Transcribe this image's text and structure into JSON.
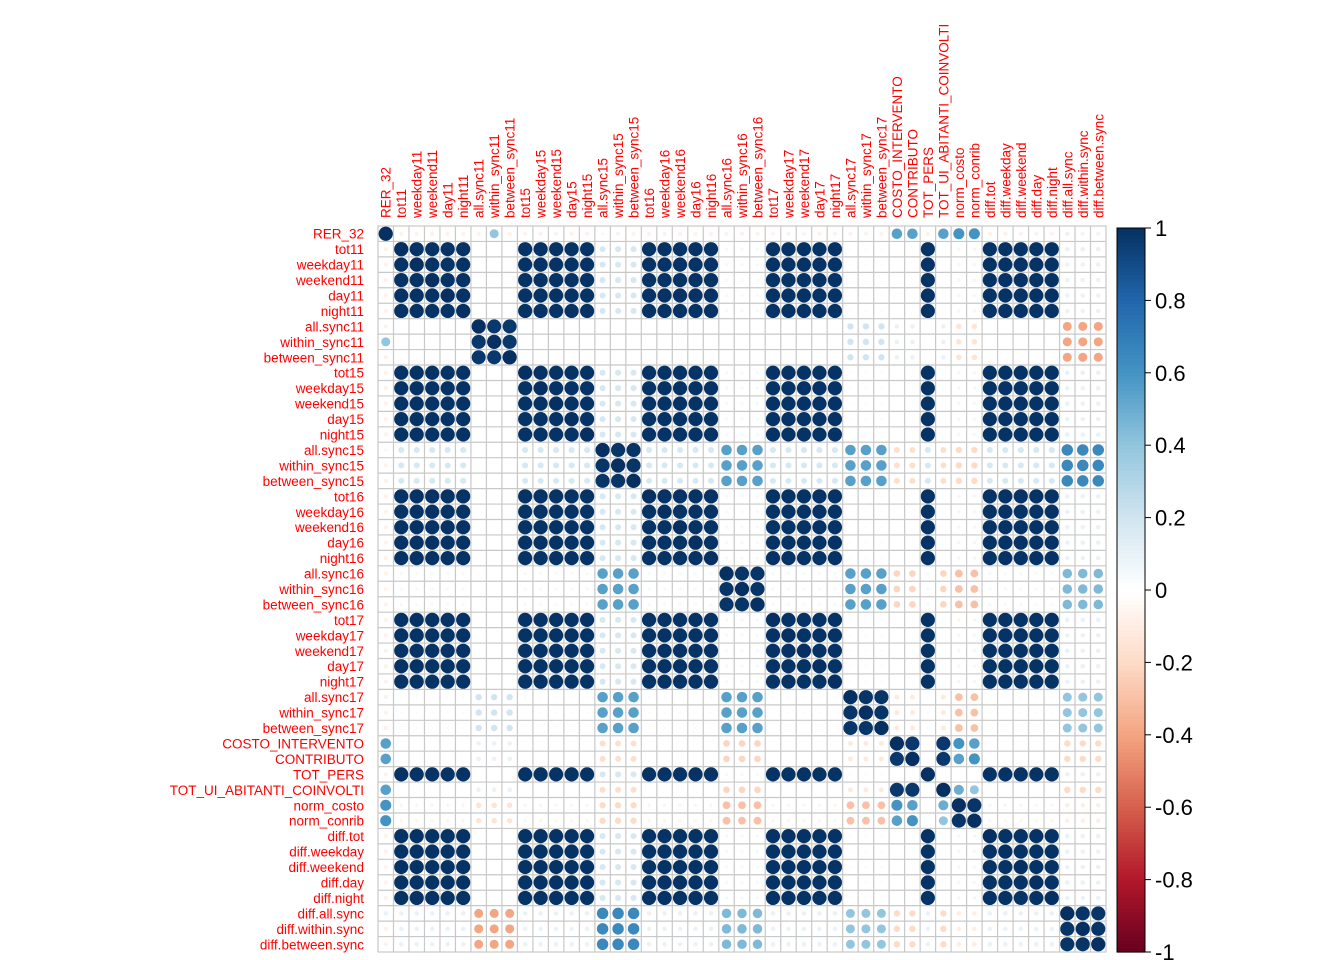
{
  "chart_data": {
    "type": "heatmap",
    "title": "",
    "xlabel": "",
    "ylabel": "",
    "variables": [
      "RER_32",
      "tot11",
      "weekday11",
      "weekend11",
      "day11",
      "night11",
      "all.sync11",
      "within_sync11",
      "between_sync11",
      "tot15",
      "weekday15",
      "weekend15",
      "day15",
      "night15",
      "all.sync15",
      "within_sync15",
      "between_sync15",
      "tot16",
      "weekday16",
      "weekend16",
      "day16",
      "night16",
      "all.sync16",
      "within_sync16",
      "between_sync16",
      "tot17",
      "weekday17",
      "weekend17",
      "day17",
      "night17",
      "all.sync17",
      "within_sync17",
      "between_sync17",
      "COSTO_INTERVENTO",
      "CONTRIBUTO",
      "TOT_PERS",
      "TOT_UI_ABITANTI_COINVOLTI",
      "norm_costo",
      "norm_conrib",
      "diff.tot",
      "diff.weekday",
      "diff.weekend",
      "diff.day",
      "diff.night",
      "diff.all.sync",
      "diff.within.sync",
      "diff.between.sync"
    ],
    "column_labels": [
      "RER_32",
      "tot11",
      "weekday11",
      "weekend11",
      "day11",
      "night11",
      "all.sync11",
      "within_sync11",
      "between_sync11",
      "tot15",
      "weekday15",
      "weekend15",
      "day15",
      "night15",
      "all.sync15",
      "within_sync15",
      "between_sync15",
      "tot16",
      "weekday16",
      "weekend16",
      "day16",
      "night16",
      "all.sync16",
      "within_sync16",
      "between_sync16",
      "tot17",
      "weekday17",
      "weekend17",
      "day17",
      "night17",
      "all.sync17",
      "within_sync17",
      "between_sync17",
      "COSTO_INTERVENTO",
      "CONTRIBUTO",
      "TOT_PERS",
      "TOT_UI_ABITANTI_COINVOLTI",
      "norm_costo",
      "norm_conrib",
      "diff.tot",
      "diff.weekday",
      "diff.weekend",
      "diff.day",
      "diff.night",
      "diff.all.sync",
      "diff.within.sync",
      "diff.between.sync"
    ],
    "groups": {
      "volume": [
        "tot11",
        "weekday11",
        "weekend11",
        "day11",
        "night11",
        "tot15",
        "weekday15",
        "weekend15",
        "day15",
        "night15",
        "tot16",
        "weekday16",
        "weekend16",
        "day16",
        "night16",
        "tot17",
        "weekday17",
        "weekend17",
        "day17",
        "night17",
        "TOT_PERS",
        "diff.tot",
        "diff.weekday",
        "diff.weekend",
        "diff.day",
        "diff.night"
      ],
      "sync11": [
        "all.sync11",
        "within_sync11",
        "between_sync11"
      ],
      "sync15": [
        "all.sync15",
        "within_sync15",
        "between_sync15"
      ],
      "sync16": [
        "all.sync16",
        "within_sync16",
        "between_sync16"
      ],
      "sync17": [
        "all.sync17",
        "within_sync17",
        "between_sync17"
      ],
      "cost": [
        "COSTO_INTERVENTO",
        "CONTRIBUTO",
        "TOT_UI_ABITANTI_COINVOLTI"
      ],
      "norm": [
        "norm_costo",
        "norm_conrib"
      ],
      "diffsync": [
        "diff.all.sync",
        "diff.within.sync",
        "diff.between.sync"
      ]
    },
    "group_correlations": {
      "volume~volume": 0.99,
      "sync11~sync11": 0.97,
      "sync15~sync15": 0.98,
      "sync16~sync16": 0.98,
      "sync17~sync17": 0.98,
      "cost~cost": 0.97,
      "norm~norm": 0.98,
      "diffsync~diffsync": 0.98,
      "sync15~sync16": 0.55,
      "sync15~sync17": 0.55,
      "sync16~sync17": 0.55,
      "sync15~diffsync": 0.65,
      "sync16~diffsync": 0.45,
      "sync17~diffsync": 0.4,
      "sync11~diffsync": -0.4,
      "cost~norm": 0.55,
      "sync15~volume": 0.18,
      "sync16~volume": 0.05,
      "sync17~volume": 0.03,
      "sync11~volume": 0.0,
      "norm~volume": -0.06,
      "cost~volume": 0.0,
      "diffsync~volume": 0.1,
      "cost~sync15": -0.18,
      "cost~sync16": -0.22,
      "cost~sync17": -0.12,
      "norm~sync15": -0.2,
      "norm~sync16": -0.3,
      "norm~sync17": -0.3,
      "cost~diffsync": -0.2,
      "norm~diffsync": -0.1,
      "sync11~sync17": 0.2,
      "sync11~cost": 0.1,
      "sync11~norm": -0.15
    },
    "overrides": [
      {
        "row": "RER_32",
        "col": "RER_32",
        "value": 1.0
      },
      {
        "row": "RER_32",
        "col": "within_sync11",
        "value": 0.4
      },
      {
        "row": "RER_32",
        "col": "COSTO_INTERVENTO",
        "value": 0.55
      },
      {
        "row": "RER_32",
        "col": "CONTRIBUTO",
        "value": 0.55
      },
      {
        "row": "RER_32",
        "col": "TOT_UI_ABITANTI_COINVOLTI",
        "value": 0.55
      },
      {
        "row": "RER_32",
        "col": "norm_costo",
        "value": 0.6
      },
      {
        "row": "RER_32",
        "col": "norm_conrib",
        "value": 0.6
      },
      {
        "row": "RER_32",
        "col": "diff.all.sync",
        "value": 0.1
      },
      {
        "row": "RER_32",
        "col": "all.sync15",
        "value": 0.05
      },
      {
        "row": "TOT_PERS",
        "col": "TOT_PERS",
        "value": 1.0
      },
      {
        "row": "TOT_PERS",
        "col": "COSTO_INTERVENTO",
        "value": 0.0
      },
      {
        "row": "TOT_PERS",
        "col": "CONTRIBUTO",
        "value": 0.0
      },
      {
        "row": "TOT_PERS",
        "col": "TOT_UI_ABITANTI_COINVOLTI",
        "value": 0.0
      },
      {
        "row": "TOT_PERS",
        "col": "norm_costo",
        "value": 0.0
      },
      {
        "row": "TOT_PERS",
        "col": "norm_conrib",
        "value": 0.0
      },
      {
        "row": "TOT_UI_ABITANTI_COINVOLTI",
        "col": "norm_costo",
        "value": 0.5
      },
      {
        "row": "TOT_UI_ABITANTI_COINVOLTI",
        "col": "norm_conrib",
        "value": 0.4
      },
      {
        "row": "norm_costo",
        "col": "TOT_UI_ABITANTI_COINVOLTI",
        "value": 0.5
      },
      {
        "row": "norm_conrib",
        "col": "TOT_UI_ABITANTI_COINVOLTI",
        "value": 0.4
      },
      {
        "row": "norm_costo",
        "col": "TOT_PERS",
        "value": 0.0
      },
      {
        "row": "norm_conrib",
        "col": "TOT_PERS",
        "value": 0.0
      },
      {
        "row": "norm_costo",
        "col": "COSTO_INTERVENTO",
        "value": 0.6
      },
      {
        "row": "norm_costo",
        "col": "CONTRIBUTO",
        "value": 0.55
      },
      {
        "row": "norm_conrib",
        "col": "COSTO_INTERVENTO",
        "value": 0.55
      },
      {
        "row": "norm_conrib",
        "col": "CONTRIBUTO",
        "value": 0.6
      },
      {
        "row": "COSTO_INTERVENTO",
        "col": "norm_costo",
        "value": 0.6
      },
      {
        "row": "COSTO_INTERVENTO",
        "col": "norm_conrib",
        "value": 0.55
      },
      {
        "row": "CONTRIBUTO",
        "col": "norm_costo",
        "value": 0.55
      },
      {
        "row": "CONTRIBUTO",
        "col": "norm_conrib",
        "value": 0.6
      }
    ],
    "colorbar": {
      "range": [
        -1,
        1
      ],
      "ticks": [
        "1",
        "0.8",
        "0.6",
        "0.4",
        "0.2",
        "0",
        "-0.2",
        "-0.4",
        "-0.6",
        "-0.8",
        "-1"
      ],
      "colors": [
        "#67001F",
        "#B2182B",
        "#D6604D",
        "#F4A582",
        "#FDDBC7",
        "#FFFFFF",
        "#D1E5F0",
        "#92C5DE",
        "#4393C3",
        "#2166AC",
        "#053061"
      ]
    },
    "grid": true,
    "legend": "right",
    "method": "circle"
  }
}
